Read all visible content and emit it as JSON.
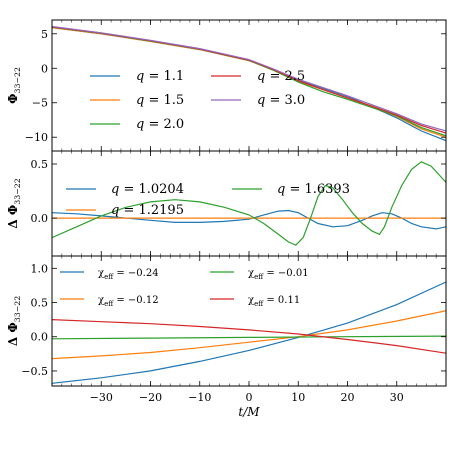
{
  "chart_data": [
    {
      "type": "line",
      "ylabel": "Φ33−22",
      "ylim": [
        -12,
        7
      ],
      "yticks": [
        5,
        0,
        -5,
        -10
      ],
      "legend": {
        "placement": "lower-left",
        "ncol": 2,
        "font_size": 13
      },
      "series": [
        {
          "name": "q = 1.1",
          "color": "#1f77b4",
          "points": [
            [
              -40,
              5.9
            ],
            [
              -30,
              5.0
            ],
            [
              -20,
              3.9
            ],
            [
              -10,
              2.7
            ],
            [
              0,
              1.1
            ],
            [
              5,
              -0.2
            ],
            [
              10,
              -1.7
            ],
            [
              15,
              -2.9
            ],
            [
              20,
              -4.1
            ],
            [
              25,
              -5.6
            ],
            [
              30,
              -7.2
            ],
            [
              35,
              -9.1
            ],
            [
              40,
              -10.5
            ]
          ]
        },
        {
          "name": "q = 1.5",
          "color": "#ff7f0e",
          "points": [
            [
              -40,
              5.9
            ],
            [
              -30,
              5.0
            ],
            [
              -20,
              3.9
            ],
            [
              -10,
              2.7
            ],
            [
              0,
              1.1
            ],
            [
              5,
              -0.3
            ],
            [
              10,
              -1.9
            ],
            [
              15,
              -3.1
            ],
            [
              20,
              -4.3
            ],
            [
              25,
              -5.6
            ],
            [
              30,
              -7.0
            ],
            [
              35,
              -8.8
            ],
            [
              40,
              -10.0
            ]
          ]
        },
        {
          "name": "q = 2.0",
          "color": "#2ca02c",
          "points": [
            [
              -40,
              5.95
            ],
            [
              -30,
              5.05
            ],
            [
              -20,
              3.95
            ],
            [
              -10,
              2.75
            ],
            [
              0,
              1.15
            ],
            [
              5,
              -0.3
            ],
            [
              10,
              -2.0
            ],
            [
              15,
              -3.4
            ],
            [
              20,
              -4.5
            ],
            [
              25,
              -5.7
            ],
            [
              30,
              -6.9
            ],
            [
              35,
              -8.6
            ],
            [
              40,
              -9.8
            ]
          ]
        },
        {
          "name": "q = 2.5",
          "color": "#d62728",
          "points": [
            [
              -40,
              6.0
            ],
            [
              -30,
              5.1
            ],
            [
              -20,
              4.0
            ],
            [
              -10,
              2.8
            ],
            [
              0,
              1.2
            ],
            [
              5,
              -0.2
            ],
            [
              10,
              -1.8
            ],
            [
              15,
              -3.1
            ],
            [
              20,
              -4.3
            ],
            [
              25,
              -5.5
            ],
            [
              30,
              -6.8
            ],
            [
              35,
              -8.3
            ],
            [
              40,
              -9.4
            ]
          ]
        },
        {
          "name": "q = 3.0",
          "color": "#9467bd",
          "points": [
            [
              -40,
              6.05
            ],
            [
              -30,
              5.15
            ],
            [
              -20,
              4.05
            ],
            [
              -10,
              2.85
            ],
            [
              0,
              1.25
            ],
            [
              5,
              -0.1
            ],
            [
              10,
              -1.6
            ],
            [
              15,
              -2.8
            ],
            [
              20,
              -4.0
            ],
            [
              25,
              -5.3
            ],
            [
              30,
              -6.6
            ],
            [
              35,
              -8.1
            ],
            [
              40,
              -9.1
            ]
          ]
        }
      ]
    },
    {
      "type": "line",
      "ylabel": "Δ Φ33−22",
      "ylim": [
        -0.35,
        0.62
      ],
      "yticks": [
        0.5,
        0.0
      ],
      "legend": {
        "placement": "top-left",
        "ncol": 2,
        "font_size": 13
      },
      "series": [
        {
          "name": "q = 1.0204",
          "color": "#1f77b4",
          "points": [
            [
              -40,
              0.05
            ],
            [
              -35,
              0.04
            ],
            [
              -30,
              0.02
            ],
            [
              -25,
              0.0
            ],
            [
              -20,
              -0.02
            ],
            [
              -15,
              -0.04
            ],
            [
              -10,
              -0.04
            ],
            [
              -5,
              -0.03
            ],
            [
              0,
              -0.01
            ],
            [
              3,
              0.03
            ],
            [
              6,
              0.065
            ],
            [
              8,
              0.07
            ],
            [
              10,
              0.05
            ],
            [
              12,
              0.0
            ],
            [
              14,
              -0.05
            ],
            [
              17,
              -0.08
            ],
            [
              20,
              -0.07
            ],
            [
              23,
              -0.02
            ],
            [
              25,
              0.02
            ],
            [
              27,
              0.05
            ],
            [
              29,
              0.04
            ],
            [
              31,
              0.0
            ],
            [
              33,
              -0.05
            ],
            [
              35,
              -0.08
            ],
            [
              38,
              -0.1
            ],
            [
              40,
              -0.08
            ]
          ]
        },
        {
          "name": "q = 1.2195",
          "color": "#ff7f0e",
          "points": [
            [
              -40,
              0.0
            ],
            [
              40,
              0.0
            ]
          ]
        },
        {
          "name": "q = 1.6393",
          "color": "#2ca02c",
          "points": [
            [
              -40,
              -0.18
            ],
            [
              -35,
              -0.08
            ],
            [
              -30,
              0.02
            ],
            [
              -25,
              0.1
            ],
            [
              -20,
              0.15
            ],
            [
              -15,
              0.17
            ],
            [
              -10,
              0.15
            ],
            [
              -5,
              0.1
            ],
            [
              0,
              0.03
            ],
            [
              3,
              -0.05
            ],
            [
              6,
              -0.15
            ],
            [
              8,
              -0.22
            ],
            [
              9.5,
              -0.25
            ],
            [
              11,
              -0.18
            ],
            [
              12.5,
              0.0
            ],
            [
              14,
              0.2
            ],
            [
              15.5,
              0.3
            ],
            [
              17,
              0.28
            ],
            [
              19,
              0.17
            ],
            [
              21,
              0.05
            ],
            [
              23,
              -0.05
            ],
            [
              25,
              -0.12
            ],
            [
              26.5,
              -0.15
            ],
            [
              27.5,
              -0.08
            ],
            [
              29,
              0.1
            ],
            [
              31,
              0.3
            ],
            [
              33,
              0.45
            ],
            [
              35,
              0.52
            ],
            [
              37,
              0.48
            ],
            [
              39,
              0.38
            ],
            [
              40,
              0.33
            ]
          ]
        }
      ]
    },
    {
      "type": "line",
      "xlabel": "t/M",
      "ylabel": "Δ Φ33−22",
      "xlim": [
        -40,
        40
      ],
      "xticks": [
        -30,
        -20,
        -10,
        0,
        10,
        20,
        30
      ],
      "ylim": [
        -0.72,
        1.18
      ],
      "yticks": [
        1.0,
        0.5,
        0.0,
        -0.5
      ],
      "legend": {
        "placement": "top-left",
        "ncol": 2,
        "font_size": 10
      },
      "series": [
        {
          "name": "χeff = −0.24",
          "color": "#1f77b4",
          "points": [
            [
              -40,
              -0.68
            ],
            [
              -30,
              -0.6
            ],
            [
              -20,
              -0.5
            ],
            [
              -10,
              -0.36
            ],
            [
              0,
              -0.2
            ],
            [
              10,
              -0.01
            ],
            [
              20,
              0.2
            ],
            [
              30,
              0.47
            ],
            [
              40,
              0.8
            ]
          ]
        },
        {
          "name": "χeff = −0.12",
          "color": "#ff7f0e",
          "points": [
            [
              -40,
              -0.32
            ],
            [
              -30,
              -0.28
            ],
            [
              -20,
              -0.23
            ],
            [
              -10,
              -0.16
            ],
            [
              0,
              -0.08
            ],
            [
              10,
              0.0
            ],
            [
              20,
              0.1
            ],
            [
              30,
              0.23
            ],
            [
              40,
              0.38
            ]
          ]
        },
        {
          "name": "χeff = −0.01",
          "color": "#2ca02c",
          "points": [
            [
              -40,
              -0.03
            ],
            [
              -20,
              -0.02
            ],
            [
              0,
              -0.01
            ],
            [
              20,
              0.0
            ],
            [
              40,
              0.01
            ]
          ]
        },
        {
          "name": "χeff = 0.11",
          "color": "#d62728",
          "points": [
            [
              -40,
              0.25
            ],
            [
              -30,
              0.22
            ],
            [
              -20,
              0.19
            ],
            [
              -10,
              0.15
            ],
            [
              0,
              0.1
            ],
            [
              10,
              0.04
            ],
            [
              20,
              -0.04
            ],
            [
              30,
              -0.13
            ],
            [
              40,
              -0.24
            ]
          ]
        }
      ]
    }
  ]
}
